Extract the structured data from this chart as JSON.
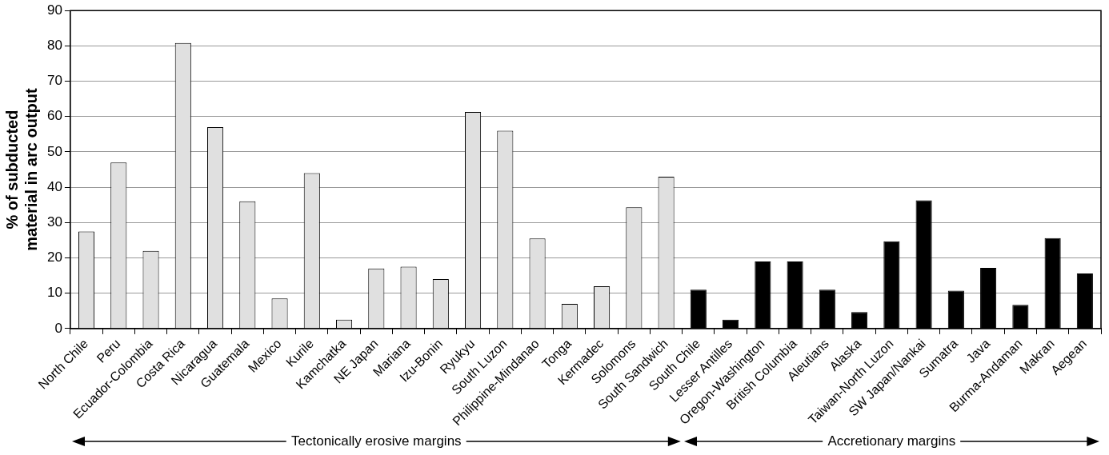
{
  "chart_data": {
    "type": "bar",
    "ylabel": "% of subducted material in arc output",
    "categories": [
      "North Chile",
      "Peru",
      "Ecuador-Colombia",
      "Costa Rica",
      "Nicaragua",
      "Guatemala",
      "Mexico",
      "Kurile",
      "Kamchatka",
      "NE Japan",
      "Mariana",
      "Izu-Bonin",
      "Ryukyu",
      "South Luzon",
      "Philippine-Mindanao",
      "Tonga",
      "Kermadec",
      "Solomons",
      "South Sandwich",
      "South Chile",
      "Lesser Antilles",
      "Oregon-Washington",
      "British Columbia",
      "Aleutians",
      "Alaska",
      "Taiwan-North Luzon",
      "SW Japan/Nankai",
      "Sumatra",
      "Java",
      "Burma-Andaman",
      "Makran",
      "Aegean"
    ],
    "values": [
      27.5,
      47,
      22,
      80.8,
      57,
      36,
      8.5,
      44,
      2.5,
      17,
      17.5,
      14,
      61.3,
      56,
      25.5,
      7,
      12,
      34.3,
      43,
      11,
      2.5,
      19,
      19,
      11,
      4.7,
      24.7,
      36.3,
      10.7,
      17.2,
      6.7,
      25.6,
      15.6
    ],
    "colors": [
      "#e0e0e0",
      "#e0e0e0",
      "#e0e0e0",
      "#e0e0e0",
      "#e0e0e0",
      "#e0e0e0",
      "#e0e0e0",
      "#e0e0e0",
      "#e0e0e0",
      "#e0e0e0",
      "#e0e0e0",
      "#e0e0e0",
      "#e0e0e0",
      "#e0e0e0",
      "#e0e0e0",
      "#e0e0e0",
      "#e0e0e0",
      "#e0e0e0",
      "#e0e0e0",
      "#000000",
      "#000000",
      "#000000",
      "#000000",
      "#000000",
      "#000000",
      "#000000",
      "#000000",
      "#000000",
      "#000000",
      "#000000",
      "#000000",
      "#000000"
    ],
    "ylim": [
      0,
      90
    ],
    "yticks": [
      0,
      10,
      20,
      30,
      40,
      50,
      60,
      70,
      80,
      90
    ],
    "grid": "y",
    "legend": false,
    "annotations": [
      "Tectonically erosive margins",
      "Accretionary margins"
    ]
  }
}
